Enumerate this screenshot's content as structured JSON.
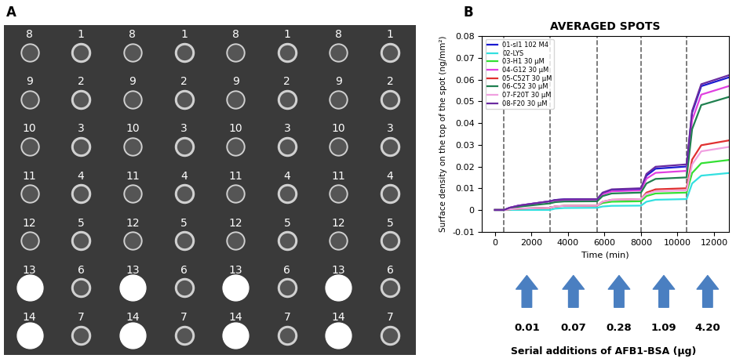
{
  "panel_a": {
    "label": "A",
    "spot_rows": [
      [
        8,
        1,
        8,
        1,
        8,
        1,
        8,
        1
      ],
      [
        9,
        2,
        9,
        2,
        9,
        2,
        9,
        2
      ],
      [
        10,
        3,
        10,
        3,
        10,
        3,
        10,
        3
      ],
      [
        11,
        4,
        11,
        4,
        11,
        4,
        11,
        4
      ],
      [
        12,
        5,
        12,
        5,
        12,
        5,
        12,
        5
      ],
      [
        13,
        6,
        13,
        6,
        13,
        6,
        13,
        6
      ],
      [
        14,
        7,
        14,
        7,
        14,
        7,
        14,
        7
      ]
    ]
  },
  "chart_data": {
    "panel_label": "B",
    "type": "line",
    "title": "AVERAGED SPOTS",
    "x_label": "Time (min)",
    "y_label": "Surface density on the top of the spot (ng/mm²)",
    "x": [
      0,
      500,
      800,
      1300,
      3000,
      3300,
      3800,
      5600,
      5900,
      6400,
      8000,
      8300,
      8800,
      10500,
      10800,
      11300,
      12800
    ],
    "series": [
      {
        "name": "01-sl1 102 M4",
        "color": "#1a1ad0",
        "values": [
          0,
          0,
          0.001,
          0.002,
          0.004,
          0.0046,
          0.0049,
          0.005,
          0.0077,
          0.009,
          0.0095,
          0.0158,
          0.019,
          0.02,
          0.0448,
          0.057,
          0.061
        ]
      },
      {
        "name": "02-LYS",
        "color": "#33e0e0",
        "values": [
          0,
          0,
          0,
          0,
          0,
          0.0006,
          0.0009,
          0.001,
          0.0016,
          0.0019,
          0.002,
          0.0038,
          0.0047,
          0.005,
          0.0122,
          0.0158,
          0.017
        ]
      },
      {
        "name": "03-H1 30 µM",
        "color": "#33e033",
        "values": [
          0,
          0,
          0.0003,
          0.0006,
          0.001,
          0.0016,
          0.0019,
          0.002,
          0.0032,
          0.0038,
          0.004,
          0.0064,
          0.0076,
          0.008,
          0.017,
          0.0215,
          0.023
        ]
      },
      {
        "name": "04-G12 30 µM",
        "color": "#e040e0",
        "values": [
          0,
          0,
          0.001,
          0.002,
          0.004,
          0.0043,
          0.0044,
          0.0045,
          0.0072,
          0.0086,
          0.009,
          0.0144,
          0.0171,
          0.018,
          0.0414,
          0.0531,
          0.057
        ]
      },
      {
        "name": "05-C52T 30 µM",
        "color": "#e03030",
        "values": [
          0,
          0,
          0.0003,
          0.0006,
          0.001,
          0.0016,
          0.0019,
          0.002,
          0.0038,
          0.0047,
          0.005,
          0.008,
          0.0095,
          0.01,
          0.0232,
          0.0298,
          0.032
        ]
      },
      {
        "name": "06-C52 30 µM",
        "color": "#208050",
        "values": [
          0,
          0,
          0.0008,
          0.0015,
          0.003,
          0.0036,
          0.0039,
          0.004,
          0.0064,
          0.0076,
          0.008,
          0.0122,
          0.0143,
          0.015,
          0.0372,
          0.0483,
          0.052
        ]
      },
      {
        "name": "07-F20T 30 µM",
        "color": "#f0a0e0",
        "values": [
          0,
          0,
          0.0003,
          0.0006,
          0.001,
          0.0016,
          0.0019,
          0.002,
          0.0038,
          0.0047,
          0.005,
          0.0074,
          0.0086,
          0.009,
          0.021,
          0.027,
          0.029
        ]
      },
      {
        "name": "08-F20 30 µM",
        "color": "#6a2aa0",
        "values": [
          0,
          0,
          0.001,
          0.002,
          0.004,
          0.0046,
          0.0049,
          0.005,
          0.008,
          0.0095,
          0.01,
          0.0166,
          0.0199,
          0.021,
          0.0456,
          0.0579,
          0.062
        ]
      }
    ],
    "xlim": [
      -700,
      12800
    ],
    "xticks": [
      0,
      2000,
      4000,
      6000,
      8000,
      10000,
      12000
    ],
    "ylim": [
      -0.01,
      0.08
    ],
    "yticks": [
      -0.01,
      0,
      0.01,
      0.02,
      0.03,
      0.04,
      0.05,
      0.06,
      0.07,
      0.08
    ],
    "legend": "upper left",
    "additions": {
      "label": "Serial additions of AFB1-BSA (µg)",
      "x": [
        500,
        3000,
        5600,
        8000,
        10500
      ],
      "amounts": [
        0.01,
        0.07,
        0.28,
        1.09,
        {
          "value": 4.2,
          "label": "4.20"
        }
      ]
    }
  }
}
